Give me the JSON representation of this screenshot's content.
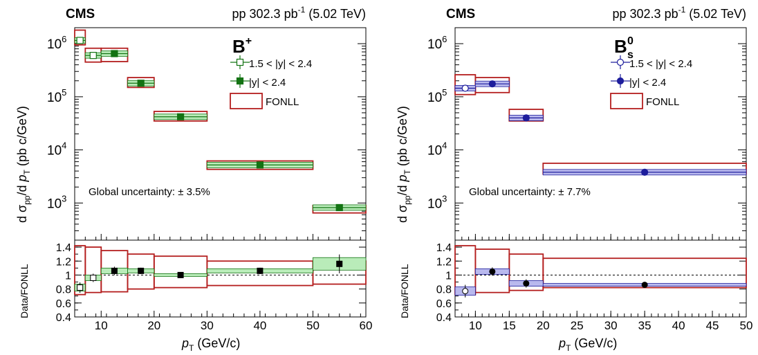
{
  "panels": [
    {
      "experiment": "CMS",
      "lumi": "pp 302.3 pb",
      "lumi_sup": "-1",
      "energy": "(5.02 TeV)",
      "particle": "B",
      "particle_sup": "+",
      "particle_sub": "",
      "global_unc": "Global uncertainty: ± 3.5%",
      "legend": [
        "1.5 < |y| < 2.4",
        "|y| < 2.4",
        "FONLL"
      ],
      "ylabel": {
        "pre": "d σ",
        "sub1": "pp",
        "mid": "/d ",
        "p": "p",
        "sub2": "T",
        "post": " (pb c/GeV)"
      },
      "ratio_ylabel": "Data/FONLL",
      "xlabel": {
        "p": "p",
        "sub": "T",
        "post": " (GeV/c)"
      },
      "x_ticks": [
        "10",
        "20",
        "30",
        "40",
        "50",
        "60"
      ],
      "y_ticks": [
        "10",
        "10",
        "10",
        "10"
      ],
      "y_tick_exp": [
        "3",
        "4",
        "5",
        "6"
      ],
      "r_ticks": [
        "0.4",
        "0.6",
        "0.8",
        "1",
        "1.2",
        "1.4"
      ]
    },
    {
      "experiment": "CMS",
      "lumi": "pp 302.3 pb",
      "lumi_sup": "-1",
      "energy": "(5.02 TeV)",
      "particle": "B",
      "particle_sup": "0",
      "particle_sub": "s",
      "global_unc": "Global uncertainty: ± 7.7%",
      "legend": [
        "1.5 < |y| < 2.4",
        "|y| < 2.4",
        "FONLL"
      ],
      "ylabel": {
        "pre": "d σ",
        "sub1": "pp",
        "mid": "/d ",
        "p": "p",
        "sub2": "T",
        "post": " (pb c/GeV)"
      },
      "ratio_ylabel": "Data/FONLL",
      "xlabel": {
        "p": "p",
        "sub": "T",
        "post": " (GeV/c)"
      },
      "x_ticks": [
        "10",
        "15",
        "20",
        "25",
        "30",
        "35",
        "40",
        "45",
        "50"
      ],
      "y_ticks": [
        "10",
        "10",
        "10",
        "10"
      ],
      "y_tick_exp": [
        "3",
        "4",
        "5",
        "6"
      ],
      "r_ticks": [
        "0.4",
        "0.6",
        "0.8",
        "1",
        "1.2",
        "1.4"
      ]
    }
  ],
  "colors": {
    "fonll": "#b41e1e",
    "bplus": "#137313",
    "bplus_band": "#b9ecb9",
    "bs": "#1d1d9c",
    "bs_band": "#b9b9ee"
  },
  "chart_data": [
    {
      "type": "scatter",
      "title": "B+",
      "xlabel": "pT (GeV/c)",
      "ylabel": "dσpp/dpT (pb c/GeV)",
      "xlim": [
        5,
        60
      ],
      "ylim_log": [
        200,
        2000000
      ],
      "y_scale": "log",
      "ratio_ylim": [
        0.4,
        1.5
      ],
      "series": [
        {
          "name": "1.5 < |y| < 2.4",
          "marker": "open-square",
          "x": [
            6,
            8.5
          ],
          "xlo": [
            5,
            7
          ],
          "xhi": [
            7,
            10
          ],
          "y": [
            1150000,
            600000
          ],
          "ratio": [
            0.82,
            0.96
          ],
          "ratio_unc": [
            0.05,
            0.04
          ]
        },
        {
          "name": "|y| < 2.4",
          "marker": "filled-square",
          "x": [
            12.5,
            17.5,
            25,
            40,
            55
          ],
          "xlo": [
            10,
            15,
            20,
            30,
            50
          ],
          "xhi": [
            15,
            20,
            30,
            50,
            60
          ],
          "y": [
            650000,
            180000,
            42000,
            5200,
            820
          ],
          "ratio": [
            1.06,
            1.06,
            1.0,
            1.06,
            1.16
          ],
          "ratio_unc": [
            0.04,
            0.03,
            0.02,
            0.03,
            0.09
          ]
        },
        {
          "name": "FONLL",
          "marker": "box",
          "xlo": [
            5,
            7,
            10,
            15,
            20,
            30,
            50
          ],
          "xhi": [
            7,
            10,
            15,
            20,
            30,
            50,
            60
          ],
          "ylo": [
            950000,
            450000,
            460000,
            150000,
            35000,
            4300,
            650
          ],
          "yhi": [
            1800000,
            820000,
            820000,
            230000,
            53000,
            6200,
            900
          ],
          "ratio_lo": [
            0.72,
            0.75,
            0.76,
            0.8,
            0.82,
            0.85,
            0.87
          ],
          "ratio_hi": [
            1.42,
            1.4,
            1.35,
            1.3,
            1.27,
            1.2,
            1.2
          ]
        }
      ]
    },
    {
      "type": "scatter",
      "title": "Bs0",
      "xlabel": "pT (GeV/c)",
      "ylabel": "dσpp/dpT (pb c/GeV)",
      "xlim": [
        7,
        50
      ],
      "ylim_log": [
        200,
        2000000
      ],
      "y_scale": "log",
      "ratio_ylim": [
        0.4,
        1.5
      ],
      "series": [
        {
          "name": "1.5 < |y| < 2.4",
          "marker": "open-circle",
          "x": [
            8.5
          ],
          "xlo": [
            7
          ],
          "xhi": [
            10
          ],
          "y": [
            145000
          ],
          "ratio": [
            0.77
          ],
          "ratio_unc": [
            0.06
          ]
        },
        {
          "name": "|y| < 2.4",
          "marker": "filled-circle",
          "x": [
            12.5,
            17.5,
            35
          ],
          "xlo": [
            10,
            15,
            20
          ],
          "xhi": [
            15,
            20,
            50
          ],
          "y": [
            175000,
            40000,
            3800
          ],
          "ratio": [
            1.05,
            0.88,
            0.86
          ],
          "ratio_unc": [
            0.04,
            0.04,
            0.02
          ]
        },
        {
          "name": "FONLL",
          "marker": "box",
          "xlo": [
            7,
            10,
            15,
            20
          ],
          "xhi": [
            10,
            15,
            20,
            50
          ],
          "ylo": [
            110000,
            120000,
            35000,
            3500
          ],
          "yhi": [
            260000,
            230000,
            58000,
            5600
          ],
          "ratio_lo": [
            0.72,
            0.75,
            0.78,
            0.82
          ],
          "ratio_hi": [
            1.42,
            1.37,
            1.3,
            1.24
          ]
        }
      ]
    }
  ]
}
